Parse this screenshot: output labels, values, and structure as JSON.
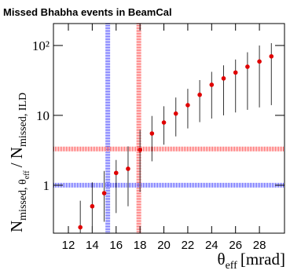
{
  "chart_data": {
    "type": "errorbar",
    "title": "Missed Bhabha events in BeamCal",
    "x_label": "θ",
    "x_label_sub": "eff",
    "x_label_unit": "[mrad]",
    "y_label_num": "N",
    "y_label_num_sub": "missed, θ",
    "y_label_num_subsub": "eff",
    "y_label_slash": "/ N",
    "y_label_den_sub": "missed, ILD",
    "x": [
      13,
      14,
      15,
      16,
      17,
      18,
      19,
      20,
      21,
      22,
      23,
      24,
      25,
      26,
      27,
      28,
      29
    ],
    "values": [
      0.25,
      0.5,
      0.77,
      1.5,
      1.72,
      3.2,
      5.5,
      7.9,
      10.6,
      14,
      19.7,
      27.4,
      33.8,
      41,
      49.7,
      59,
      69.9
    ],
    "lower": [
      0.2,
      0.2,
      0.3,
      0.4,
      0.5,
      0.8,
      2.2,
      3.8,
      5,
      6.5,
      8,
      9,
      10,
      11,
      12,
      13,
      14
    ],
    "upper": [
      0.6,
      1.1,
      1.6,
      2.3,
      3.6,
      6.2,
      9.8,
      13.5,
      18,
      24,
      32,
      42,
      52,
      63,
      80,
      100,
      108
    ],
    "color": "#e00000",
    "xlim": [
      10.75,
      30.1
    ],
    "ylim": [
      0.206,
      206
    ],
    "log_y": true,
    "xticks": [
      12,
      14,
      16,
      18,
      20,
      22,
      24,
      26,
      28
    ],
    "yticks": [
      1,
      10,
      {
        "value": 100,
        "label": "10²"
      }
    ],
    "vlines": [
      {
        "x": 15.3,
        "color": "#4a4aff"
      },
      {
        "x": 17.9,
        "color": "#ff4a4a"
      }
    ],
    "hlines": [
      {
        "y": 3.3,
        "color": "#ff4a4a"
      },
      {
        "y": 1,
        "color": "#4a4aff"
      }
    ]
  }
}
